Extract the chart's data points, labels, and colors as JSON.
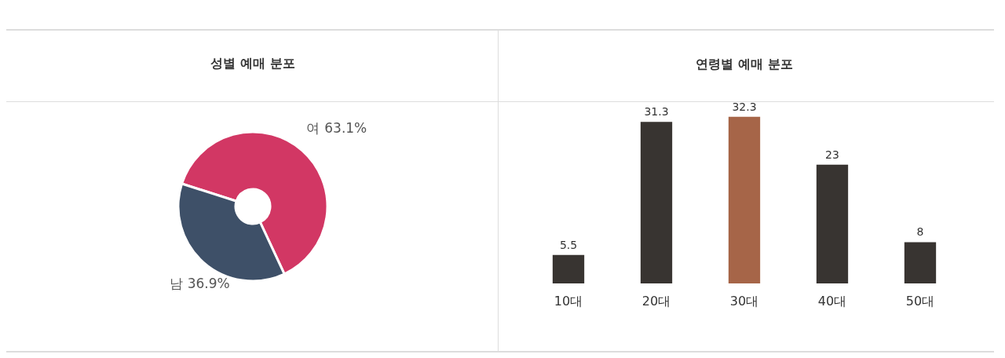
{
  "chart_data": [
    {
      "type": "donut",
      "title": "성별 예매 분포",
      "categories": [
        "여",
        "남"
      ],
      "values": [
        63.1,
        36.9
      ],
      "colors": [
        "#d23764",
        "#3e5068"
      ],
      "value_labels": [
        "63.1%",
        "36.9%"
      ],
      "legend": false
    },
    {
      "type": "bar",
      "title": "연령별 예매 분포",
      "categories": [
        "10대",
        "20대",
        "30대",
        "40대",
        "50대"
      ],
      "values": [
        5.5,
        31.3,
        32.3,
        23,
        8
      ],
      "colors": [
        "#383431",
        "#383431",
        "#a66548",
        "#383431",
        "#383431"
      ],
      "data_labels": true,
      "legend": false
    }
  ]
}
